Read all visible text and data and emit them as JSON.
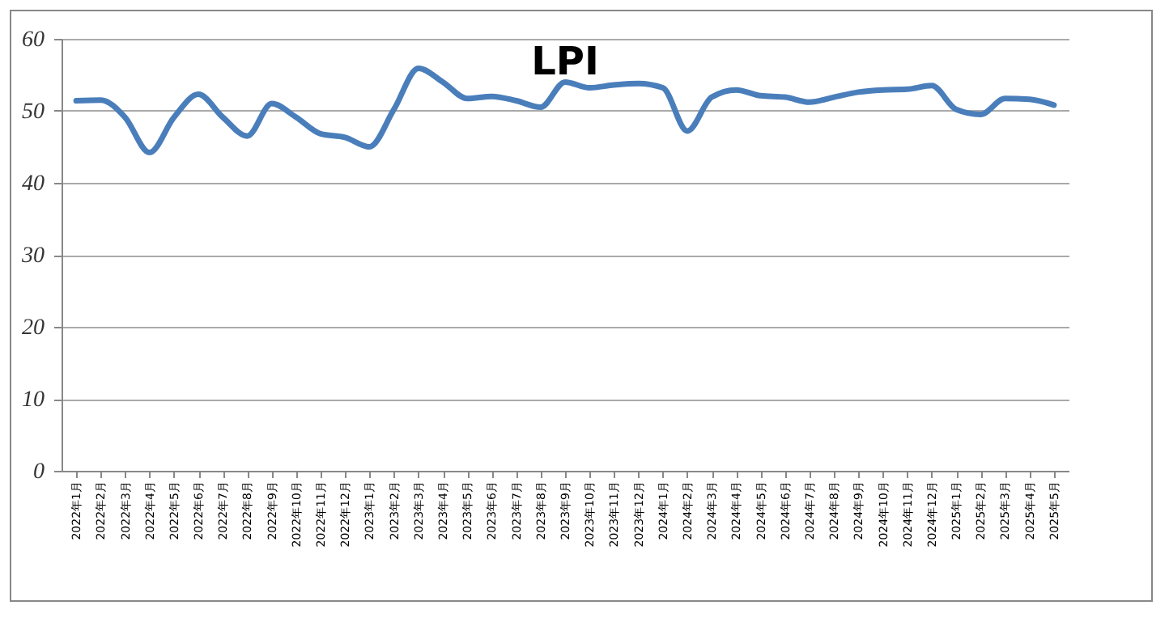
{
  "chart_data": {
    "type": "line",
    "title": "LPI",
    "categories": [
      "2022年1月",
      "2022年2月",
      "2022年3月",
      "2022年4月",
      "2022年5月",
      "2022年6月",
      "2022年7月",
      "2022年8月",
      "2022年9月",
      "2022年10月",
      "2022年11月",
      "2022年12月",
      "2023年1月",
      "2023年2月",
      "2023年3月",
      "2023年4月",
      "2023年5月",
      "2023年6月",
      "2023年7月",
      "2023年8月",
      "2023年9月",
      "2023年10月",
      "2023年11月",
      "2023年12月",
      "2024年1月",
      "2024年2月",
      "2024年3月",
      "2024年4月",
      "2024年5月",
      "2024年6月",
      "2024年7月",
      "2024年8月",
      "2024年9月",
      "2024年10月",
      "2024年11月",
      "2024年12月",
      "2025年1月",
      "2025年2月",
      "2025年3月",
      "2025年4月",
      "2025年5月"
    ],
    "series": [
      {
        "color": "#4a7ebb",
        "values": [
          51.4,
          51.5,
          49.1,
          44.2,
          49.1,
          52.3,
          49.1,
          46.5,
          51.0,
          49.1,
          46.8,
          46.3,
          45.0,
          50.2,
          55.9,
          54.0,
          51.7,
          52.0,
          51.4,
          50.5,
          54.0,
          53.2,
          53.6,
          53.8,
          53.2,
          47.2,
          51.9,
          52.9,
          52.1,
          51.9,
          51.2,
          51.9,
          52.6,
          52.9,
          53.0,
          53.5,
          50.2,
          49.5,
          51.7,
          51.6,
          50.8
        ]
      }
    ],
    "ylim": [
      0,
      60
    ],
    "yticks": [
      0,
      10,
      20,
      30,
      40,
      50,
      60
    ],
    "grid": "y",
    "marker": "none",
    "line_style": "solid"
  }
}
